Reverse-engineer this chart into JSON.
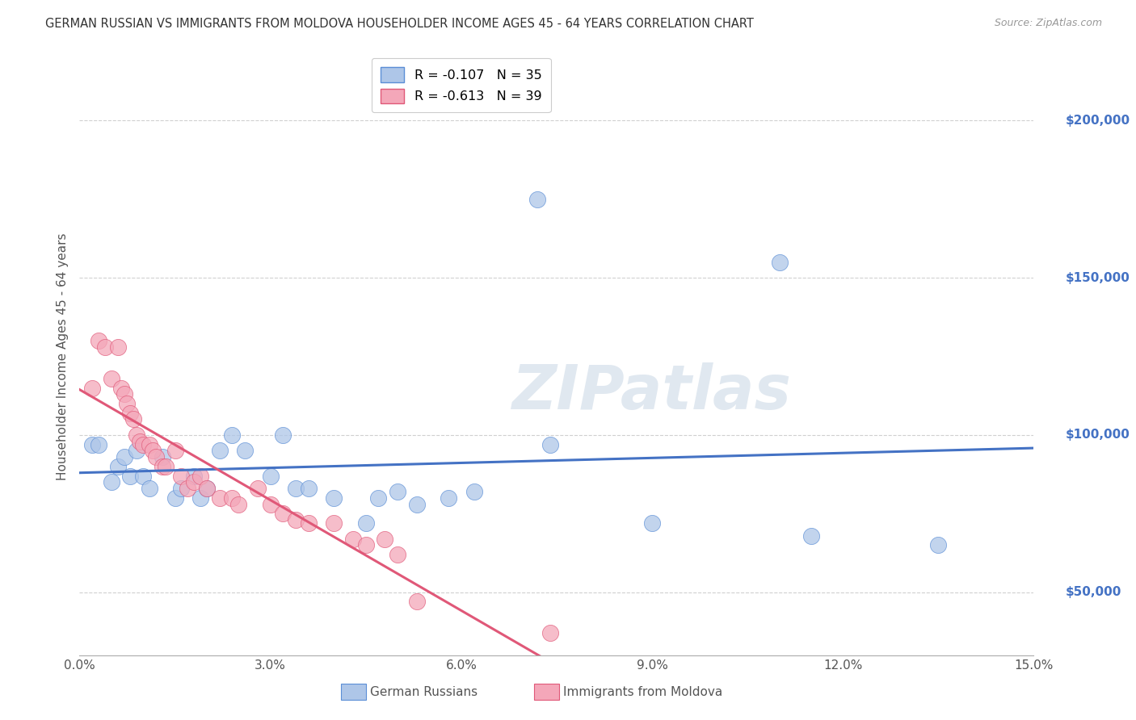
{
  "title": "GERMAN RUSSIAN VS IMMIGRANTS FROM MOLDOVA HOUSEHOLDER INCOME AGES 45 - 64 YEARS CORRELATION CHART",
  "source": "Source: ZipAtlas.com",
  "ylabel": "Householder Income Ages 45 - 64 years",
  "xtick_labels": [
    "0.0%",
    "3.0%",
    "6.0%",
    "9.0%",
    "12.0%",
    "15.0%"
  ],
  "xtick_vals": [
    0.0,
    3.0,
    6.0,
    9.0,
    12.0,
    15.0
  ],
  "ytick_labels": [
    "$50,000",
    "$100,000",
    "$150,000",
    "$200,000"
  ],
  "ytick_vals": [
    50000,
    100000,
    150000,
    200000
  ],
  "ylim": [
    30000,
    220000
  ],
  "xlim": [
    0.0,
    15.0
  ],
  "blue_color": "#aec6e8",
  "blue_edge_color": "#5b8ed6",
  "pink_color": "#f4a7b9",
  "pink_edge_color": "#e05878",
  "blue_line_color": "#4472c4",
  "pink_line_color": "#e05878",
  "blue_label": "R = -0.107   N = 35",
  "pink_label": "R = -0.613   N = 39",
  "bottom_label1": "German Russians",
  "bottom_label2": "Immigrants from Moldova",
  "watermark": "ZIPatlas",
  "blue_points": [
    [
      0.2,
      97000
    ],
    [
      0.3,
      97000
    ],
    [
      0.5,
      85000
    ],
    [
      0.6,
      90000
    ],
    [
      0.7,
      93000
    ],
    [
      0.8,
      87000
    ],
    [
      0.9,
      95000
    ],
    [
      1.0,
      87000
    ],
    [
      1.1,
      83000
    ],
    [
      1.3,
      93000
    ],
    [
      1.5,
      80000
    ],
    [
      1.6,
      83000
    ],
    [
      1.8,
      87000
    ],
    [
      1.9,
      80000
    ],
    [
      2.0,
      83000
    ],
    [
      2.2,
      95000
    ],
    [
      2.4,
      100000
    ],
    [
      2.6,
      95000
    ],
    [
      3.0,
      87000
    ],
    [
      3.2,
      100000
    ],
    [
      3.4,
      83000
    ],
    [
      3.6,
      83000
    ],
    [
      4.0,
      80000
    ],
    [
      4.5,
      72000
    ],
    [
      4.7,
      80000
    ],
    [
      5.0,
      82000
    ],
    [
      5.3,
      78000
    ],
    [
      5.8,
      80000
    ],
    [
      6.2,
      82000
    ],
    [
      7.2,
      175000
    ],
    [
      7.4,
      97000
    ],
    [
      9.0,
      72000
    ],
    [
      11.0,
      155000
    ],
    [
      11.5,
      68000
    ],
    [
      13.5,
      65000
    ]
  ],
  "pink_points": [
    [
      0.2,
      115000
    ],
    [
      0.3,
      130000
    ],
    [
      0.4,
      128000
    ],
    [
      0.5,
      118000
    ],
    [
      0.6,
      128000
    ],
    [
      0.65,
      115000
    ],
    [
      0.7,
      113000
    ],
    [
      0.75,
      110000
    ],
    [
      0.8,
      107000
    ],
    [
      0.85,
      105000
    ],
    [
      0.9,
      100000
    ],
    [
      0.95,
      98000
    ],
    [
      1.0,
      97000
    ],
    [
      1.1,
      97000
    ],
    [
      1.15,
      95000
    ],
    [
      1.2,
      93000
    ],
    [
      1.3,
      90000
    ],
    [
      1.35,
      90000
    ],
    [
      1.5,
      95000
    ],
    [
      1.6,
      87000
    ],
    [
      1.7,
      83000
    ],
    [
      1.8,
      85000
    ],
    [
      1.9,
      87000
    ],
    [
      2.0,
      83000
    ],
    [
      2.2,
      80000
    ],
    [
      2.4,
      80000
    ],
    [
      2.5,
      78000
    ],
    [
      2.8,
      83000
    ],
    [
      3.0,
      78000
    ],
    [
      3.2,
      75000
    ],
    [
      3.4,
      73000
    ],
    [
      3.6,
      72000
    ],
    [
      4.0,
      72000
    ],
    [
      4.3,
      67000
    ],
    [
      4.5,
      65000
    ],
    [
      4.8,
      67000
    ],
    [
      5.0,
      62000
    ],
    [
      5.3,
      47000
    ],
    [
      7.4,
      37000
    ]
  ]
}
